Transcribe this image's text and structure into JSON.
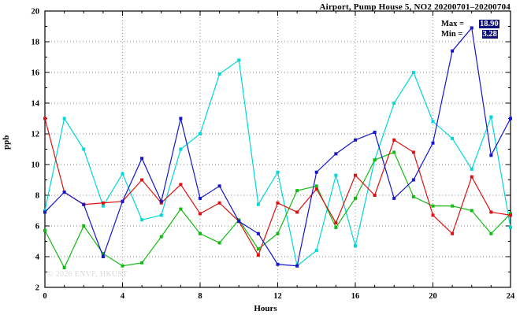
{
  "title": "Airport, Pump House 5, NO2 20200701–20200704",
  "annotation": {
    "max_label": "Max =",
    "max_value": "18.90",
    "min_label": "Min =",
    "min_value": "3.28"
  },
  "watermark": "© 2026 ENVF, HKUST",
  "chart_data": {
    "type": "line",
    "title": "Airport, Pump House 5, NO2 20200701–20200704",
    "xlabel": "Hours",
    "ylabel": "ppb",
    "xlim": [
      0,
      24
    ],
    "ylim": [
      2,
      20
    ],
    "xticks": [
      0,
      4,
      8,
      12,
      16,
      20,
      24
    ],
    "yticks": [
      2,
      4,
      6,
      8,
      10,
      12,
      14,
      16,
      18,
      20
    ],
    "grid": true,
    "legend": "none",
    "x": [
      0,
      1,
      2,
      3,
      4,
      5,
      6,
      7,
      8,
      9,
      10,
      11,
      12,
      13,
      14,
      15,
      16,
      17,
      18,
      19,
      20,
      21,
      22,
      23,
      24
    ],
    "series": [
      {
        "name": "cyan-line",
        "color": "#00d8d8",
        "values": [
          7.0,
          13.0,
          11.0,
          7.3,
          9.4,
          6.4,
          6.7,
          11.0,
          12.0,
          15.9,
          16.8,
          7.4,
          9.5,
          3.4,
          4.4,
          9.3,
          4.7,
          10.3,
          14.0,
          16.0,
          12.8,
          11.7,
          9.7,
          13.1,
          5.9
        ]
      },
      {
        "name": "green-line",
        "color": "#11bb11",
        "values": [
          5.7,
          3.28,
          6.0,
          4.2,
          3.4,
          3.6,
          5.3,
          7.1,
          5.5,
          4.9,
          6.4,
          4.5,
          5.5,
          8.3,
          8.6,
          5.9,
          7.8,
          10.3,
          10.8,
          7.9,
          7.3,
          7.3,
          7.0,
          5.5,
          6.8
        ]
      },
      {
        "name": "red-line",
        "color": "#dd1111",
        "values": [
          13.0,
          8.2,
          7.4,
          7.5,
          7.6,
          9.0,
          7.5,
          8.7,
          6.8,
          7.5,
          6.3,
          4.1,
          7.5,
          6.9,
          8.4,
          6.2,
          9.3,
          8.0,
          11.6,
          10.8,
          6.7,
          5.5,
          9.2,
          6.9,
          6.7
        ]
      },
      {
        "name": "blue-line",
        "color": "#1515cc",
        "values": [
          6.9,
          8.2,
          7.4,
          4.0,
          7.6,
          10.4,
          7.6,
          13.0,
          7.8,
          8.6,
          6.3,
          5.5,
          3.5,
          3.4,
          9.5,
          10.7,
          11.6,
          12.1,
          7.8,
          9.0,
          11.4,
          17.4,
          18.9,
          10.6,
          13.0
        ]
      }
    ]
  }
}
